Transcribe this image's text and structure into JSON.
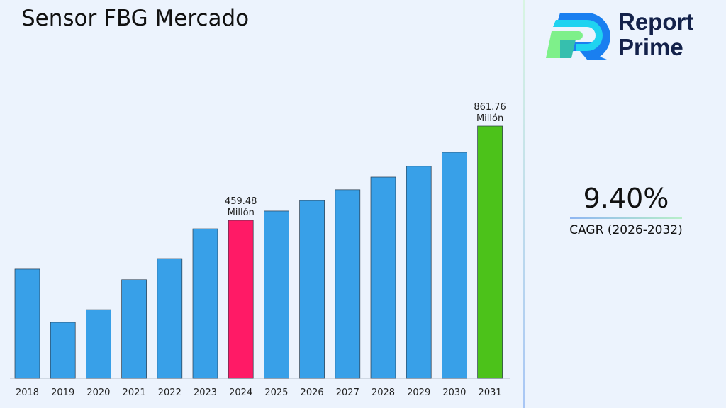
{
  "chart_data": {
    "type": "bar",
    "title": "Sensor FBG Mercado",
    "categories": [
      "2018",
      "2019",
      "2020",
      "2021",
      "2022",
      "2023",
      "2024",
      "2025",
      "2026",
      "2027",
      "2028",
      "2029",
      "2030",
      "2031"
    ],
    "values": [
      251,
      24,
      78,
      206,
      296,
      423,
      459.48,
      499,
      544,
      590,
      644,
      690,
      750,
      861.76
    ],
    "colors": {
      "default": "#38a0e8",
      "highlight_2024": "#ff1a66",
      "highlight_2031": "#4cc21a"
    },
    "data_labels": [
      {
        "category": "2024",
        "value": "459.48",
        "unit": "Millón"
      },
      {
        "category": "2031",
        "value": "861.76",
        "unit": "Millón"
      }
    ],
    "xlabel": "",
    "ylabel": "",
    "ylim": [
      -215,
      960
    ],
    "grid": false,
    "legend": "none"
  },
  "logo": {
    "line1": "Report",
    "line2": "Prime"
  },
  "cagr": {
    "value": "9.40%",
    "label": "CAGR (2026-2032)"
  }
}
